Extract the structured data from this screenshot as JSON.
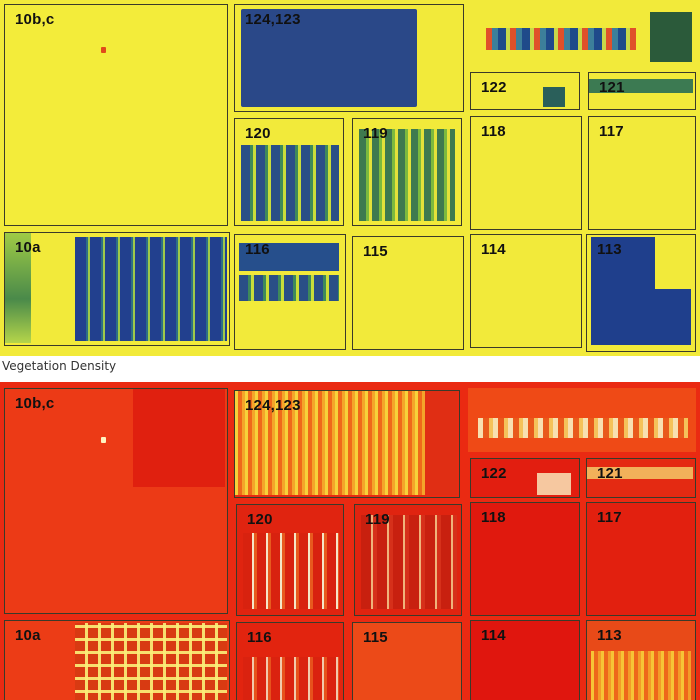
{
  "caption": "Vegetation Density",
  "colors": {
    "veg_background": "#f2ea3a",
    "veg_dense": "#1f3f8c",
    "therm_background": "#ea2a12",
    "border": "#3a3a2a"
  },
  "vegetation_fields": {
    "f10bc": "10b,c",
    "f124": "124,123",
    "f122": "122",
    "f121": "121",
    "f120": "120",
    "f119": "119",
    "f118": "118",
    "f117": "117",
    "f10a": "10a",
    "f116": "116",
    "f115": "115",
    "f114": "114",
    "f113": "113"
  },
  "thermal_fields": {
    "f10bc": "10b,c",
    "f124": "124,123",
    "f122": "122",
    "f121": "121",
    "f120": "120",
    "f119": "119",
    "f118": "118",
    "f117": "117",
    "f10a": "10a",
    "f116": "116",
    "f115": "115",
    "f114": "114",
    "f113": "113"
  }
}
